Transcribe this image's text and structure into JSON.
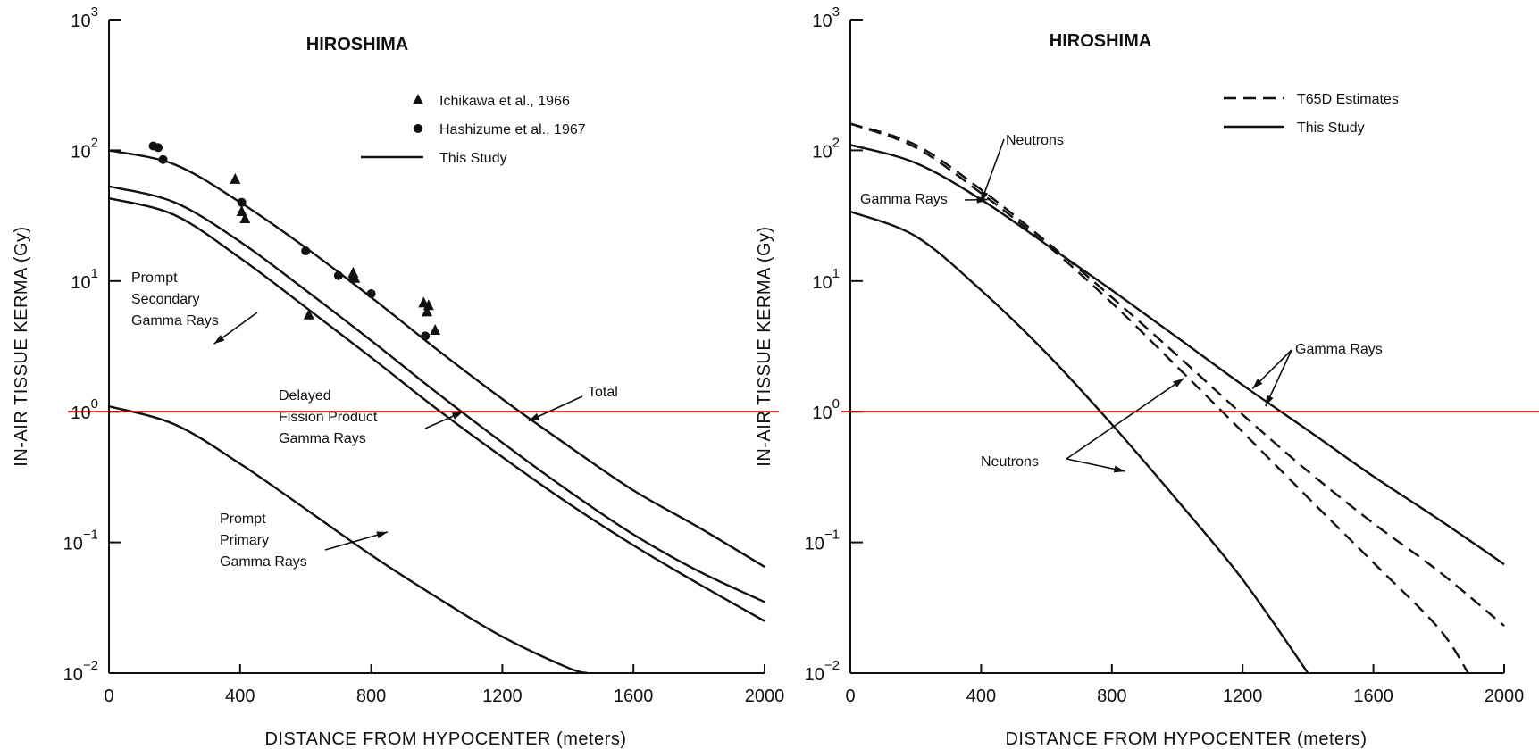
{
  "chart_data": [
    {
      "type": "line",
      "title": "HIROSHIMA",
      "xlabel": "DISTANCE FROM HYPOCENTER (meters)",
      "ylabel": "IN-AIR TISSUE KERMA (Gy)",
      "xlim": [
        0,
        2000
      ],
      "ylim": [
        0.01,
        1000
      ],
      "yscale": "log",
      "xticks": [
        0,
        400,
        800,
        1200,
        1600,
        2000
      ],
      "xtick_labels": [
        "0",
        "400",
        "800",
        "1200",
        "1600",
        "2000"
      ],
      "yticks": [
        0.01,
        0.1,
        1,
        10,
        100,
        1000
      ],
      "ytick_labels": [
        [
          "10",
          "−2"
        ],
        [
          "10",
          "−1"
        ],
        [
          "10",
          "0"
        ],
        [
          "10",
          "1"
        ],
        [
          "10",
          "2"
        ],
        [
          "10",
          "3"
        ]
      ],
      "reference_line": {
        "y": 1,
        "color": "#c00000"
      },
      "legend": [
        {
          "marker": "triangle",
          "label": "Ichikawa et al., 1966"
        },
        {
          "marker": "circle",
          "label": "Hashizume et al., 1967"
        },
        {
          "marker": "solid-line",
          "label": "This Study"
        }
      ],
      "series": [
        {
          "name": "Total",
          "style": "solid",
          "points": [
            [
              0,
              100
            ],
            [
              200,
              78
            ],
            [
              400,
              40
            ],
            [
              600,
              18
            ],
            [
              800,
              7.5
            ],
            [
              1000,
              3
            ],
            [
              1200,
              1.25
            ],
            [
              1400,
              0.55
            ],
            [
              1600,
              0.25
            ],
            [
              1800,
              0.13
            ],
            [
              2000,
              0.065
            ]
          ]
        },
        {
          "name": "Prompt Secondary Gamma Rays",
          "style": "solid",
          "points": [
            [
              0,
              53
            ],
            [
              200,
              40
            ],
            [
              400,
              20
            ],
            [
              600,
              8.5
            ],
            [
              800,
              3.5
            ],
            [
              1000,
              1.4
            ],
            [
              1200,
              0.58
            ],
            [
              1400,
              0.25
            ],
            [
              1600,
              0.115
            ],
            [
              1800,
              0.06
            ],
            [
              2000,
              0.035
            ]
          ]
        },
        {
          "name": "Delayed Fission Product Gamma Rays",
          "style": "solid",
          "points": [
            [
              0,
              43
            ],
            [
              200,
              32
            ],
            [
              400,
              15
            ],
            [
              600,
              6.3
            ],
            [
              800,
              2.6
            ],
            [
              1000,
              1.05
            ],
            [
              1200,
              0.45
            ],
            [
              1400,
              0.2
            ],
            [
              1600,
              0.095
            ],
            [
              1800,
              0.048
            ],
            [
              2000,
              0.025
            ]
          ]
        },
        {
          "name": "Prompt Primary Gamma Rays",
          "style": "solid",
          "points": [
            [
              0,
              1.1
            ],
            [
              200,
              0.8
            ],
            [
              400,
              0.4
            ],
            [
              600,
              0.18
            ],
            [
              800,
              0.08
            ],
            [
              1000,
              0.038
            ],
            [
              1200,
              0.019
            ],
            [
              1400,
              0.011
            ],
            [
              1460,
              0.01
            ]
          ]
        }
      ],
      "scatter": [
        {
          "name": "Ichikawa et al., 1966",
          "marker": "triangle",
          "points": [
            [
              385,
              60
            ],
            [
              405,
              34
            ],
            [
              415,
              30
            ],
            [
              610,
              5.5
            ],
            [
              745,
              11.5
            ],
            [
              750,
              10.5
            ],
            [
              960,
              6.8
            ],
            [
              970,
              5.8
            ],
            [
              975,
              6.5
            ],
            [
              995,
              4.2
            ]
          ]
        },
        {
          "name": "Hashizume et al., 1967",
          "marker": "circle",
          "points": [
            [
              135,
              108
            ],
            [
              150,
              105
            ],
            [
              165,
              85
            ],
            [
              405,
              40
            ],
            [
              600,
              17
            ],
            [
              700,
              11
            ],
            [
              745,
              10.5
            ],
            [
              800,
              8
            ],
            [
              965,
              3.8
            ]
          ]
        }
      ],
      "annotations": [
        {
          "lines": [
            "Prompt",
            "Secondary",
            "Gamma Rays"
          ]
        },
        {
          "lines": [
            "Delayed",
            "Fission Product",
            "Gamma Rays"
          ]
        },
        {
          "lines": [
            "Total"
          ]
        },
        {
          "lines": [
            "Prompt",
            "Primary",
            "Gamma Rays"
          ]
        }
      ]
    },
    {
      "type": "line",
      "title": "HIROSHIMA",
      "xlabel": "DISTANCE FROM HYPOCENTER (meters)",
      "ylabel": "IN-AIR TISSUE KERMA (Gy)",
      "xlim": [
        0,
        2000
      ],
      "ylim": [
        0.01,
        1000
      ],
      "yscale": "log",
      "xticks": [
        0,
        400,
        800,
        1200,
        1600,
        2000
      ],
      "xtick_labels": [
        "0",
        "400",
        "800",
        "1200",
        "1600",
        "2000"
      ],
      "yticks": [
        0.01,
        0.1,
        1,
        10,
        100,
        1000
      ],
      "ytick_labels": [
        [
          "10",
          "−2"
        ],
        [
          "10",
          "−1"
        ],
        [
          "10",
          "0"
        ],
        [
          "10",
          "1"
        ],
        [
          "10",
          "2"
        ],
        [
          "10",
          "3"
        ]
      ],
      "reference_line": {
        "y": 1,
        "color": "#c00000"
      },
      "legend": [
        {
          "marker": "dashed-line",
          "label": "T65D Estimates"
        },
        {
          "marker": "solid-line",
          "label": "This Study"
        }
      ],
      "series": [
        {
          "name": "Gamma Rays (This Study)",
          "style": "solid",
          "points": [
            [
              0,
              110
            ],
            [
              200,
              80
            ],
            [
              400,
              42
            ],
            [
              600,
              19
            ],
            [
              800,
              8.5
            ],
            [
              1000,
              3.7
            ],
            [
              1200,
              1.6
            ],
            [
              1400,
              0.72
            ],
            [
              1600,
              0.32
            ],
            [
              1800,
              0.15
            ],
            [
              2000,
              0.068
            ]
          ]
        },
        {
          "name": "Gamma Rays (T65D)",
          "style": "dashed",
          "points": [
            [
              0,
              160
            ],
            [
              200,
              110
            ],
            [
              400,
              50
            ],
            [
              600,
              20
            ],
            [
              800,
              7.5
            ],
            [
              1000,
              2.7
            ],
            [
              1200,
              0.95
            ],
            [
              1400,
              0.35
            ],
            [
              1600,
              0.14
            ],
            [
              1800,
              0.06
            ],
            [
              2000,
              0.023
            ]
          ]
        },
        {
          "name": "Neutrons (T65D)",
          "style": "dashed",
          "points": [
            [
              0,
              160
            ],
            [
              200,
              105
            ],
            [
              400,
              47
            ],
            [
              600,
              19
            ],
            [
              800,
              6.8
            ],
            [
              1000,
              2.2
            ],
            [
              1200,
              0.7
            ],
            [
              1400,
              0.22
            ],
            [
              1600,
              0.07
            ],
            [
              1800,
              0.022
            ],
            [
              1890,
              0.01
            ]
          ]
        },
        {
          "name": "Neutrons (This Study)",
          "style": "solid",
          "points": [
            [
              0,
              34
            ],
            [
              200,
              22
            ],
            [
              400,
              8.5
            ],
            [
              600,
              2.8
            ],
            [
              800,
              0.8
            ],
            [
              1000,
              0.21
            ],
            [
              1200,
              0.052
            ],
            [
              1400,
              0.01
            ]
          ]
        }
      ],
      "annotations": [
        {
          "lines": [
            "Neutrons"
          ]
        },
        {
          "lines": [
            "Gamma Rays"
          ]
        },
        {
          "lines": [
            "Gamma Rays"
          ]
        },
        {
          "lines": [
            "Neutrons"
          ]
        }
      ]
    }
  ]
}
